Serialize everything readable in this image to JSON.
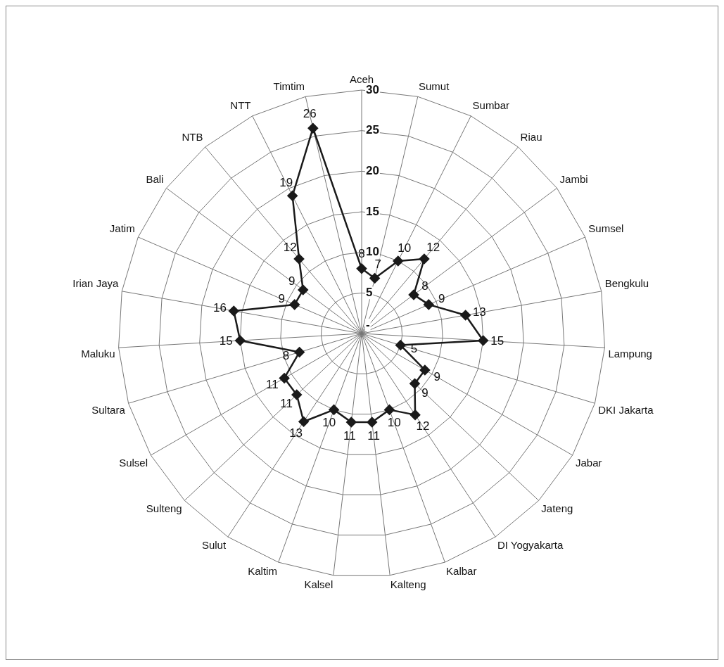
{
  "chart_data": {
    "type": "radar",
    "categories": [
      "Aceh",
      "Sumut",
      "Sumbar",
      "Riau",
      "Jambi",
      "Sumsel",
      "Bengkulu",
      "Lampung",
      "DKI Jakarta",
      "Jabar",
      "Jateng",
      "DI Yogyakarta",
      "Kalbar",
      "Kalteng",
      "Kalsel",
      "Kaltim",
      "Sulut",
      "Sulteng",
      "Sulsel",
      "Sultara",
      "Maluku",
      "Irian Jaya",
      "Jatim",
      "Bali",
      "NTB",
      "NTT",
      "Timtim"
    ],
    "series": [
      {
        "color": "#1a1a1a",
        "values": [
          8,
          7,
          10,
          12,
          8,
          9,
          13,
          15,
          5,
          9,
          9,
          12,
          10,
          11,
          11,
          10,
          13,
          11,
          11,
          8,
          15,
          16,
          9,
          9,
          12,
          19,
          26
        ]
      }
    ],
    "ylim": [
      0,
      30
    ],
    "yticks": [
      {
        "value": 0,
        "label": "-"
      },
      5,
      10,
      15,
      20,
      25,
      30
    ],
    "grid": true,
    "marker": "diamond",
    "line_style": "solid",
    "data_labels": true
  }
}
